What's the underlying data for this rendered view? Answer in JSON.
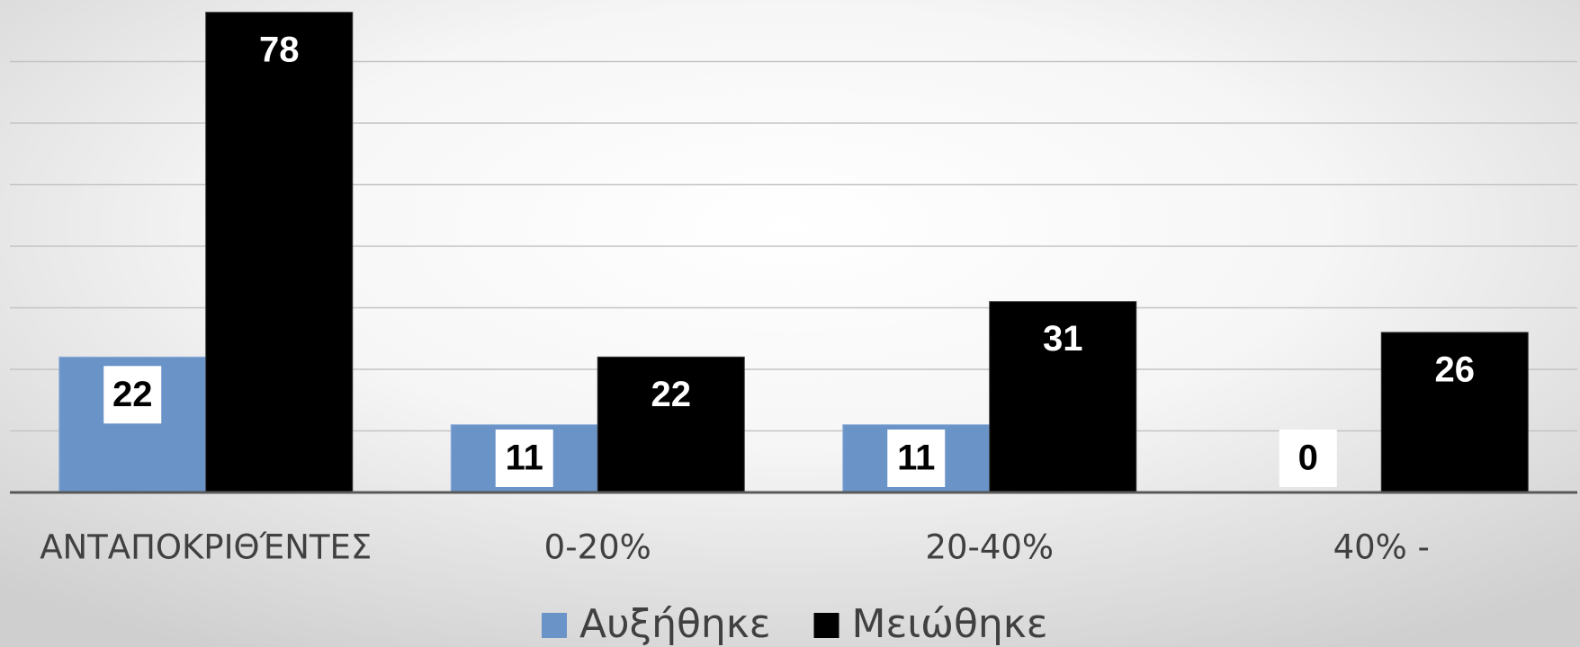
{
  "chart_data": {
    "type": "bar",
    "categories": [
      "ΑΝΤΑΠΟΚΡΙΘΈΝΤΕΣ",
      "0-20%",
      "20-40%",
      "40% -"
    ],
    "series": [
      {
        "name": "Αυξήθηκε",
        "color": "#6a93c8",
        "values": [
          22,
          11,
          11,
          0
        ]
      },
      {
        "name": "Μειώθηκε",
        "color": "#000000",
        "values": [
          78,
          22,
          31,
          26
        ]
      }
    ],
    "ylim": [
      0,
      80
    ],
    "yticks": [
      0,
      10,
      20,
      30,
      40,
      50,
      60,
      70
    ],
    "grid": true,
    "legend": "bottom"
  }
}
